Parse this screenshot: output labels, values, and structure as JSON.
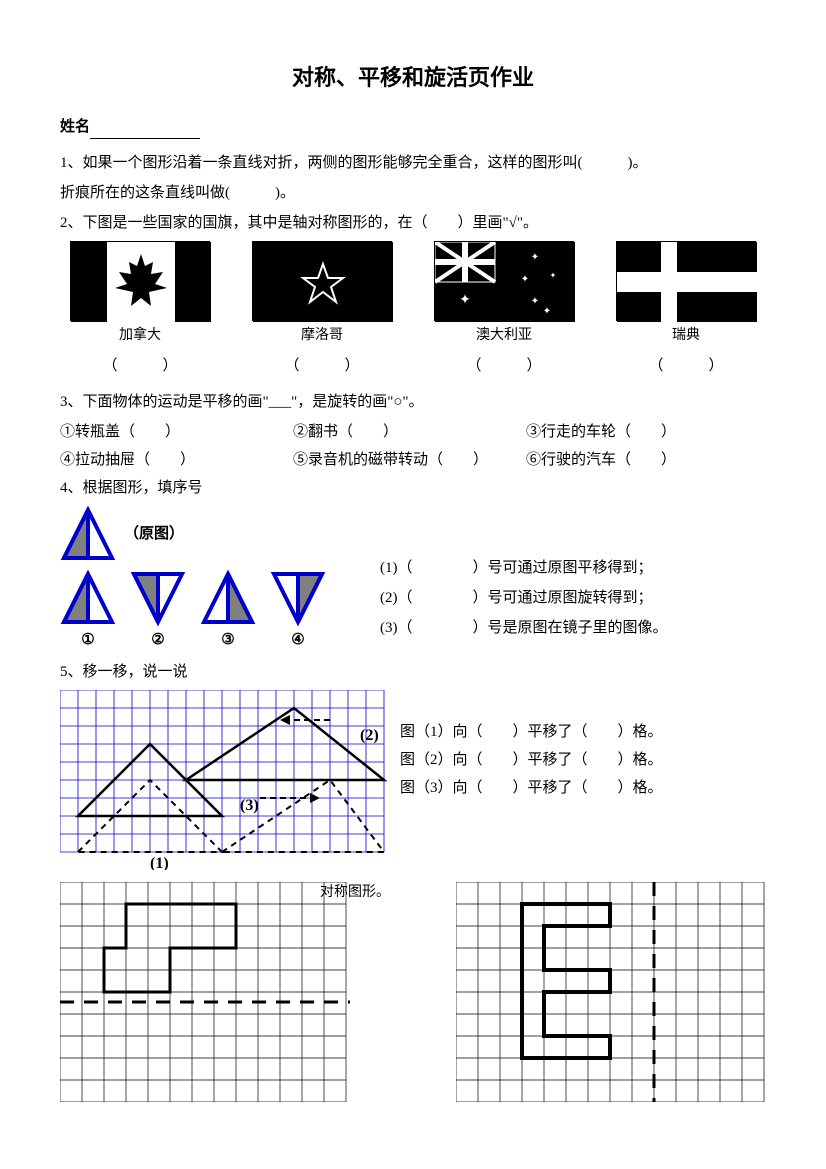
{
  "title": "对称、平移和旋活页作业",
  "name_label": "姓名",
  "q1": "1、如果一个图形沿着一条直线对折，两侧的图形能够完全重合，这样的图形叫(　　　)。",
  "q1b": "折痕所在的这条直线叫做(　　　)。",
  "q2": "2、下图是一些国家的国旗，其中是轴对称图形的，在（　　）里画\"√\"。",
  "flags": {
    "f1": "加拿大",
    "f2": "摩洛哥",
    "f3": "澳大利亚",
    "f4": "瑞典"
  },
  "paren": "（　　　）",
  "q3": "3、下面物体的运动是平移的画\"___\"，是旋转的画\"○\"。",
  "q3_items": {
    "i1": "①转瓶盖（　　）",
    "i2": "②翻书（　　）",
    "i3": "③行走的车轮（　　）",
    "i4": "④拉动抽屉（　　）",
    "i5": "⑤录音机的磁带转动（　　）",
    "i6": "⑥行驶的汽车（　　）"
  },
  "q4": "4、根据图形，填序号",
  "q4_orig": "（原图）",
  "q4_nums": {
    "n1": "①",
    "n2": "②",
    "n3": "③",
    "n4": "④"
  },
  "q4_ans": {
    "a1": "(1)（　　　　）号可通过原图平移得到；",
    "a2": "(2)（　　　　）号可通过原图旋转得到；",
    "a3": "(3)（　　　　）号是原图在镜子里的图像。"
  },
  "q5": "5、移一移，说一说",
  "q5_ans": {
    "a1": "图（1）向（　　）平移了（　　）格。",
    "a2": "图（2）向（　　）平移了（　　）格。",
    "a3": "图（3）向（　　）平移了（　　）格。"
  },
  "q6_label": "对称图形。",
  "colors": {
    "tri_stroke": "#0000cc",
    "tri_fill": "#808080",
    "grid_line": "#0000cc",
    "black": "#000000"
  },
  "triangles": {
    "size": 56,
    "stroke_width": 4
  },
  "grid5": {
    "cols": 18,
    "rows": 9,
    "cell": 18
  },
  "grid6": {
    "cols": 13,
    "rows": 10,
    "cell": 22
  }
}
